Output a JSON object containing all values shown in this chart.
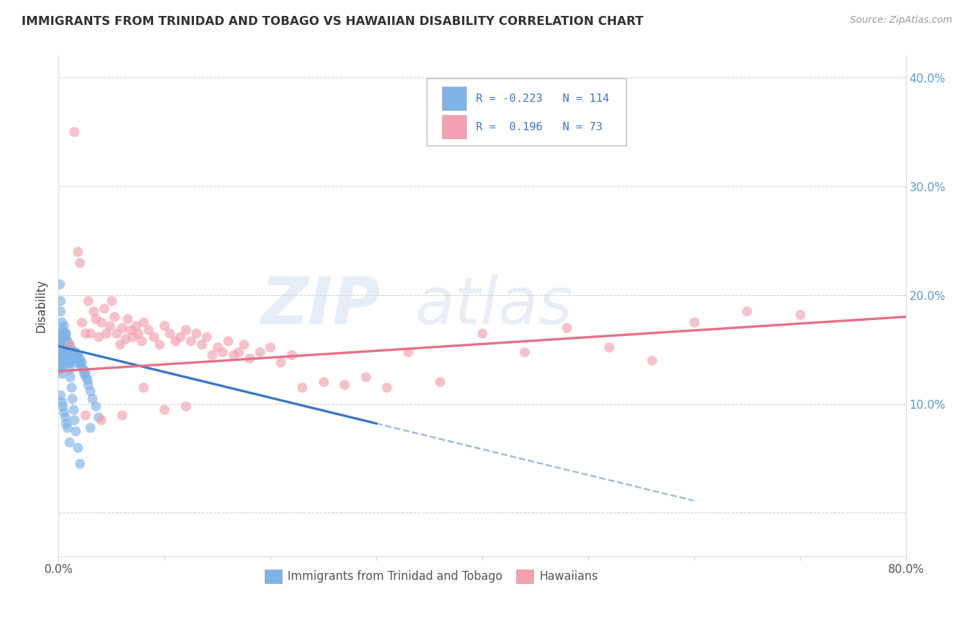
{
  "title": "IMMIGRANTS FROM TRINIDAD AND TOBAGO VS HAWAIIAN DISABILITY CORRELATION CHART",
  "source": "Source: ZipAtlas.com",
  "ylabel": "Disability",
  "xlim": [
    0.0,
    0.8
  ],
  "ylim": [
    -0.04,
    0.42
  ],
  "yticks": [
    0.0,
    0.1,
    0.2,
    0.3,
    0.4
  ],
  "ytick_labels_right": [
    "",
    "10.0%",
    "20.0%",
    "30.0%",
    "40.0%"
  ],
  "xticks": [
    0.0,
    0.1,
    0.2,
    0.3,
    0.4,
    0.5,
    0.6,
    0.7,
    0.8
  ],
  "xtick_labels": [
    "0.0%",
    "",
    "",
    "",
    "",
    "",
    "",
    "",
    "80.0%"
  ],
  "blue_R": -0.223,
  "blue_N": 114,
  "pink_R": 0.196,
  "pink_N": 73,
  "blue_color": "#7EB3E8",
  "pink_color": "#F4A0B0",
  "blue_line_color": "#3B78C3",
  "pink_line_color": "#E8708A",
  "watermark_zip": "ZIP",
  "watermark_atlas": "atlas",
  "legend_label_blue": "Immigrants from Trinidad and Tobago",
  "legend_label_pink": "Hawaiians",
  "blue_line_x_start": 0.0,
  "blue_line_x_solid_end": 0.3,
  "blue_line_x_dash_end": 0.6,
  "blue_line_y_at_0": 0.153,
  "blue_line_y_at_030": 0.082,
  "blue_line_y_at_060": 0.011,
  "pink_line_x_start": 0.0,
  "pink_line_x_end": 0.8,
  "pink_line_y_at_0": 0.13,
  "pink_line_y_at_080": 0.18,
  "blue_points_x": [
    0.001,
    0.001,
    0.001,
    0.002,
    0.002,
    0.002,
    0.002,
    0.002,
    0.003,
    0.003,
    0.003,
    0.003,
    0.003,
    0.003,
    0.004,
    0.004,
    0.004,
    0.004,
    0.004,
    0.005,
    0.005,
    0.005,
    0.005,
    0.005,
    0.006,
    0.006,
    0.006,
    0.006,
    0.007,
    0.007,
    0.007,
    0.007,
    0.007,
    0.008,
    0.008,
    0.008,
    0.008,
    0.009,
    0.009,
    0.009,
    0.009,
    0.01,
    0.01,
    0.01,
    0.01,
    0.011,
    0.011,
    0.011,
    0.012,
    0.012,
    0.012,
    0.013,
    0.013,
    0.013,
    0.014,
    0.014,
    0.014,
    0.015,
    0.015,
    0.016,
    0.016,
    0.017,
    0.017,
    0.018,
    0.018,
    0.019,
    0.02,
    0.02,
    0.021,
    0.022,
    0.023,
    0.024,
    0.025,
    0.026,
    0.027,
    0.028,
    0.03,
    0.032,
    0.035,
    0.038,
    0.001,
    0.002,
    0.002,
    0.003,
    0.003,
    0.004,
    0.004,
    0.005,
    0.005,
    0.006,
    0.006,
    0.007,
    0.008,
    0.008,
    0.009,
    0.01,
    0.01,
    0.011,
    0.012,
    0.013,
    0.014,
    0.015,
    0.016,
    0.018,
    0.02,
    0.002,
    0.003,
    0.004,
    0.005,
    0.006,
    0.007,
    0.008,
    0.01,
    0.03
  ],
  "blue_points_y": [
    0.145,
    0.138,
    0.132,
    0.155,
    0.148,
    0.142,
    0.158,
    0.135,
    0.15,
    0.145,
    0.162,
    0.138,
    0.128,
    0.155,
    0.148,
    0.142,
    0.158,
    0.135,
    0.165,
    0.155,
    0.148,
    0.142,
    0.138,
    0.162,
    0.15,
    0.145,
    0.14,
    0.158,
    0.148,
    0.155,
    0.142,
    0.138,
    0.165,
    0.15,
    0.145,
    0.14,
    0.158,
    0.148,
    0.145,
    0.142,
    0.138,
    0.15,
    0.145,
    0.142,
    0.155,
    0.148,
    0.145,
    0.138,
    0.15,
    0.148,
    0.142,
    0.145,
    0.142,
    0.148,
    0.145,
    0.142,
    0.148,
    0.145,
    0.142,
    0.148,
    0.142,
    0.145,
    0.138,
    0.142,
    0.145,
    0.14,
    0.138,
    0.142,
    0.135,
    0.138,
    0.132,
    0.128,
    0.13,
    0.125,
    0.122,
    0.118,
    0.112,
    0.105,
    0.098,
    0.088,
    0.21,
    0.195,
    0.185,
    0.175,
    0.165,
    0.158,
    0.168,
    0.162,
    0.172,
    0.155,
    0.165,
    0.16,
    0.155,
    0.148,
    0.145,
    0.138,
    0.132,
    0.125,
    0.115,
    0.105,
    0.095,
    0.085,
    0.075,
    0.06,
    0.045,
    0.108,
    0.102,
    0.098,
    0.092,
    0.088,
    0.082,
    0.078,
    0.065,
    0.078
  ],
  "pink_points_x": [
    0.01,
    0.015,
    0.018,
    0.02,
    0.022,
    0.025,
    0.028,
    0.03,
    0.033,
    0.035,
    0.038,
    0.04,
    0.043,
    0.045,
    0.048,
    0.05,
    0.053,
    0.055,
    0.058,
    0.06,
    0.063,
    0.065,
    0.068,
    0.07,
    0.073,
    0.075,
    0.078,
    0.08,
    0.085,
    0.09,
    0.095,
    0.1,
    0.105,
    0.11,
    0.115,
    0.12,
    0.125,
    0.13,
    0.135,
    0.14,
    0.145,
    0.15,
    0.155,
    0.16,
    0.165,
    0.17,
    0.175,
    0.18,
    0.19,
    0.2,
    0.21,
    0.22,
    0.23,
    0.25,
    0.27,
    0.29,
    0.31,
    0.33,
    0.36,
    0.4,
    0.44,
    0.48,
    0.52,
    0.56,
    0.6,
    0.65,
    0.7,
    0.025,
    0.04,
    0.06,
    0.08,
    0.1,
    0.12
  ],
  "pink_points_y": [
    0.155,
    0.35,
    0.24,
    0.23,
    0.175,
    0.165,
    0.195,
    0.165,
    0.185,
    0.178,
    0.162,
    0.175,
    0.188,
    0.165,
    0.172,
    0.195,
    0.18,
    0.165,
    0.155,
    0.17,
    0.16,
    0.178,
    0.168,
    0.162,
    0.172,
    0.165,
    0.158,
    0.175,
    0.168,
    0.162,
    0.155,
    0.172,
    0.165,
    0.158,
    0.162,
    0.168,
    0.158,
    0.165,
    0.155,
    0.162,
    0.145,
    0.152,
    0.148,
    0.158,
    0.145,
    0.148,
    0.155,
    0.142,
    0.148,
    0.152,
    0.138,
    0.145,
    0.115,
    0.12,
    0.118,
    0.125,
    0.115,
    0.148,
    0.12,
    0.165,
    0.148,
    0.17,
    0.152,
    0.14,
    0.175,
    0.185,
    0.182,
    0.09,
    0.085,
    0.09,
    0.115,
    0.095,
    0.098
  ]
}
